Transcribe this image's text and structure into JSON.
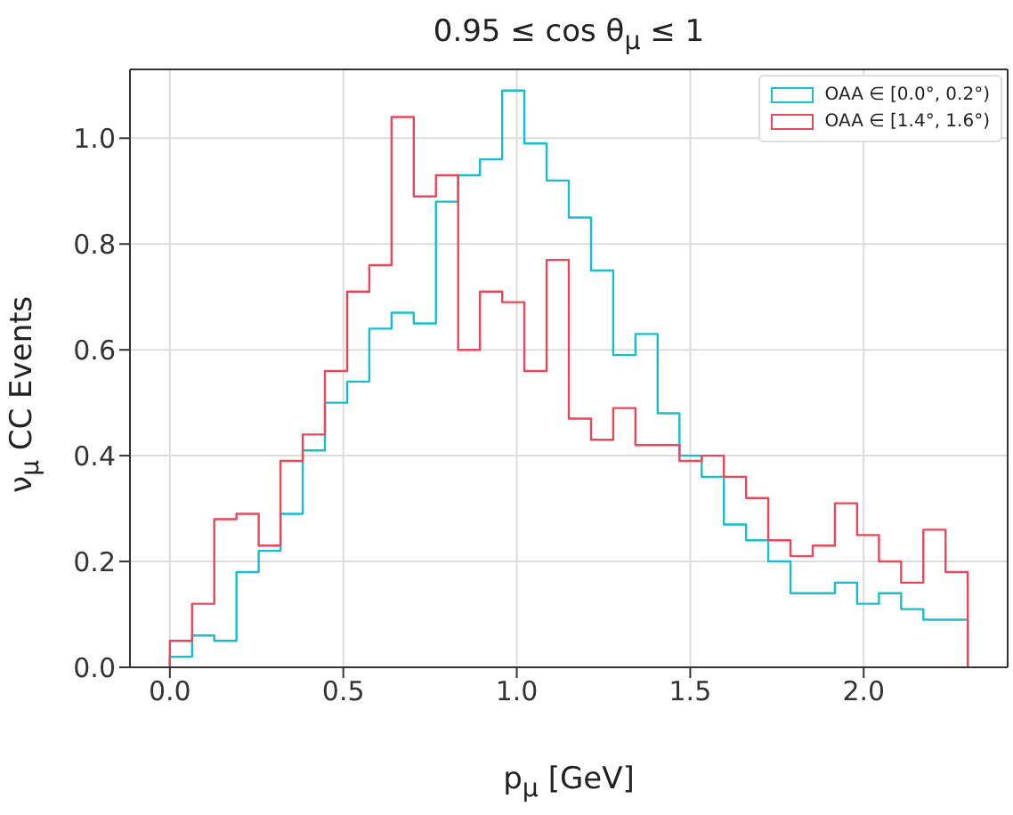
{
  "chart_data": {
    "type": "histogram",
    "title": "0.95 ≤ cos θ$_{μ}$ ≤ 1",
    "xlabel": "p$_{μ}$ [GeV]",
    "ylabel": "ν$_{μ}$ CC Events",
    "bins": [
      0,
      0.064,
      0.128,
      0.192,
      0.256,
      0.319,
      0.383,
      0.447,
      0.511,
      0.575,
      0.639,
      0.703,
      0.767,
      0.831,
      0.894,
      0.958,
      1.022,
      1.086,
      1.15,
      1.214,
      1.278,
      1.342,
      1.406,
      1.469,
      1.533,
      1.597,
      1.661,
      1.725,
      1.789,
      1.853,
      1.917,
      1.981,
      2.044,
      2.108,
      2.172,
      2.236,
      2.3
    ],
    "series": [
      {
        "name": "OAA ∈ [0.0°, 0.2°)",
        "color": "#17becf",
        "values": [
          0.02,
          0.06,
          0.05,
          0.18,
          0.22,
          0.29,
          0.41,
          0.5,
          0.54,
          0.64,
          0.67,
          0.65,
          0.88,
          0.93,
          0.96,
          1.09,
          0.99,
          0.92,
          0.85,
          0.75,
          0.59,
          0.63,
          0.48,
          0.4,
          0.36,
          0.27,
          0.24,
          0.2,
          0.14,
          0.14,
          0.16,
          0.12,
          0.14,
          0.11,
          0.09,
          0.09
        ]
      },
      {
        "name": "OAA ∈ [1.4°, 1.6°)",
        "color": "#e8485a",
        "values": [
          0.05,
          0.12,
          0.28,
          0.29,
          0.23,
          0.39,
          0.44,
          0.56,
          0.71,
          0.76,
          1.04,
          0.89,
          0.93,
          0.6,
          0.71,
          0.69,
          0.56,
          0.77,
          0.47,
          0.43,
          0.49,
          0.42,
          0.42,
          0.39,
          0.4,
          0.36,
          0.32,
          0.24,
          0.21,
          0.23,
          0.31,
          0.25,
          0.2,
          0.16,
          0.26,
          0.18
        ]
      }
    ],
    "xlim": [
      -0.115,
      2.415
    ],
    "xticks": [
      {
        "value": 0,
        "label": "0.0"
      },
      {
        "value": 0.5,
        "label": "0.5"
      },
      {
        "value": 1,
        "label": "1.0"
      },
      {
        "value": 1.5,
        "label": "1.5"
      },
      {
        "value": 2,
        "label": "2.0"
      }
    ],
    "ylim": [
      0,
      1.13
    ],
    "yticks": [
      {
        "value": 0,
        "label": "0.0"
      },
      {
        "value": 0.2,
        "label": "0.2"
      },
      {
        "value": 0.4,
        "label": "0.4"
      },
      {
        "value": 0.6,
        "label": "0.6"
      },
      {
        "value": 0.8,
        "label": "0.8"
      },
      {
        "value": 1,
        "label": "1.0"
      }
    ],
    "grid": true,
    "legend": "top right"
  }
}
